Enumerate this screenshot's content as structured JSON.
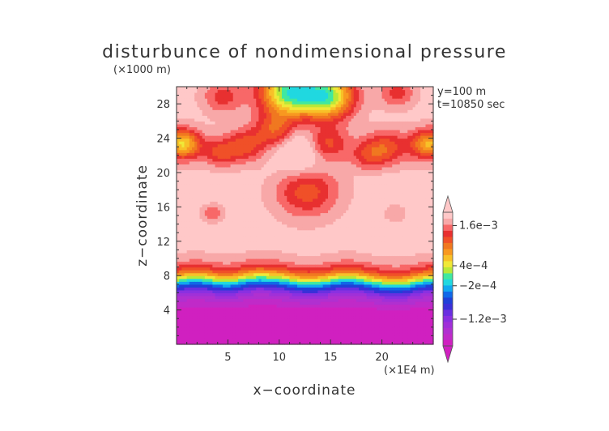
{
  "chart_data": {
    "type": "heatmap",
    "title": "disturbunce of nondimensional pressure",
    "xlabel": "x−coordinate",
    "ylabel": "z−coordinate",
    "x_unit": "(×1E4 m)",
    "y_unit": "(×1000 m)",
    "annotations": [
      "y=100 m",
      "t=10850 sec"
    ],
    "xlim": [
      0,
      25
    ],
    "ylim": [
      0,
      30
    ],
    "x_ticks": [
      5,
      10,
      15,
      20
    ],
    "x_tick_labels": [
      "5",
      "10",
      "15",
      "20"
    ],
    "y_ticks": [
      4,
      8,
      12,
      16,
      20,
      24,
      28
    ],
    "y_tick_labels": [
      "4",
      "8",
      "12",
      "16",
      "20",
      "24",
      "28"
    ],
    "colorbar": {
      "tick_labels": [
        "1.6e−3",
        "4e−4",
        "−2e−4",
        "−1.2e−3"
      ],
      "tick_values": [
        0.0016,
        0.0004,
        -0.0002,
        -0.0012
      ],
      "range": [
        -0.002,
        0.002
      ],
      "colors": [
        "#d020c0",
        "#c02ac8",
        "#b030d0",
        "#a030d8",
        "#8a30e0",
        "#6a30e0",
        "#3a30d8",
        "#2040d8",
        "#1068e8",
        "#10a8f0",
        "#20d8e0",
        "#40e8a0",
        "#b8e838",
        "#f0e838",
        "#f8c028",
        "#f89820",
        "#f07820",
        "#f05028",
        "#e83030",
        "#f86868",
        "#f8a8a8",
        "#ffc8c8"
      ]
    },
    "note": "Field values are estimated from the contour fill; cells hold the colour-band index (0 = lowest, 21 = highest)."
  },
  "colors": {
    "background": "#ffffff",
    "text": "#333333",
    "frame": "#333333"
  }
}
